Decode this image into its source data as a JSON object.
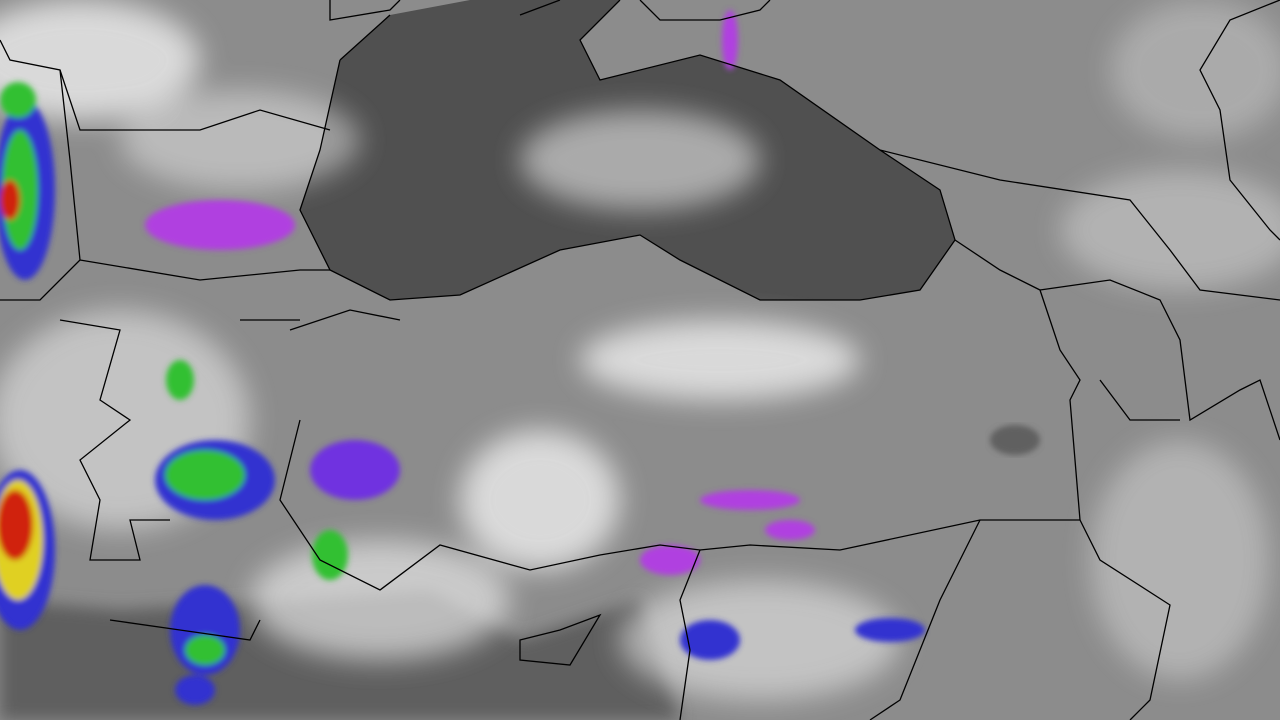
{
  "map": {
    "kind": "infrared satellite imagery",
    "colors": {
      "land_base": "#8c8c8c",
      "sea_dark": "#4e4e4e",
      "cloud_white": "#f4f4f4",
      "border_line": "#000000",
      "convection_purple": "#b040e0",
      "convection_blue": "#3030d0",
      "convection_green": "#30c030",
      "convection_red": "#d02010",
      "convection_yellow": "#e0d020"
    }
  }
}
